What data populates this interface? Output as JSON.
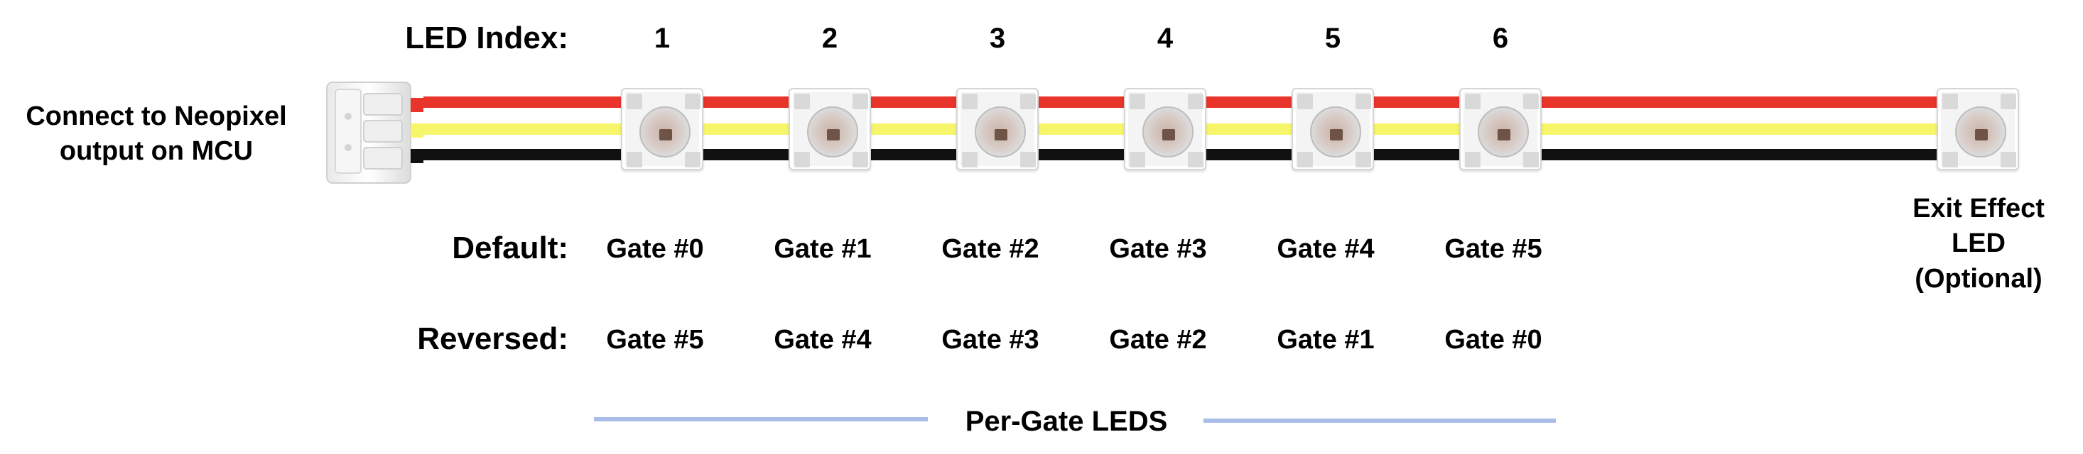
{
  "header": {
    "led_index_label": "LED Index:",
    "indices": [
      "1",
      "2",
      "3",
      "4",
      "5",
      "6"
    ]
  },
  "connector": {
    "label_line1": "Connect to Neopixel",
    "label_line2": "output on MCU"
  },
  "rows": {
    "default_label": "Default:",
    "default_gates": [
      "Gate #0",
      "Gate #1",
      "Gate #2",
      "Gate #3",
      "Gate #4",
      "Gate #5"
    ],
    "reversed_label": "Reversed:",
    "reversed_gates": [
      "Gate #5",
      "Gate #4",
      "Gate #3",
      "Gate #2",
      "Gate #1",
      "Gate #0"
    ]
  },
  "exit_led": {
    "line1": "Exit Effect",
    "line2": "LED",
    "line3": "(Optional)"
  },
  "footer": {
    "label": "Per-Gate LEDS"
  },
  "colors": {
    "wire_red": "#e8342a",
    "wire_yellow": "#f7f56a",
    "wire_black": "#111111",
    "divider_blue": "#aabdea"
  }
}
